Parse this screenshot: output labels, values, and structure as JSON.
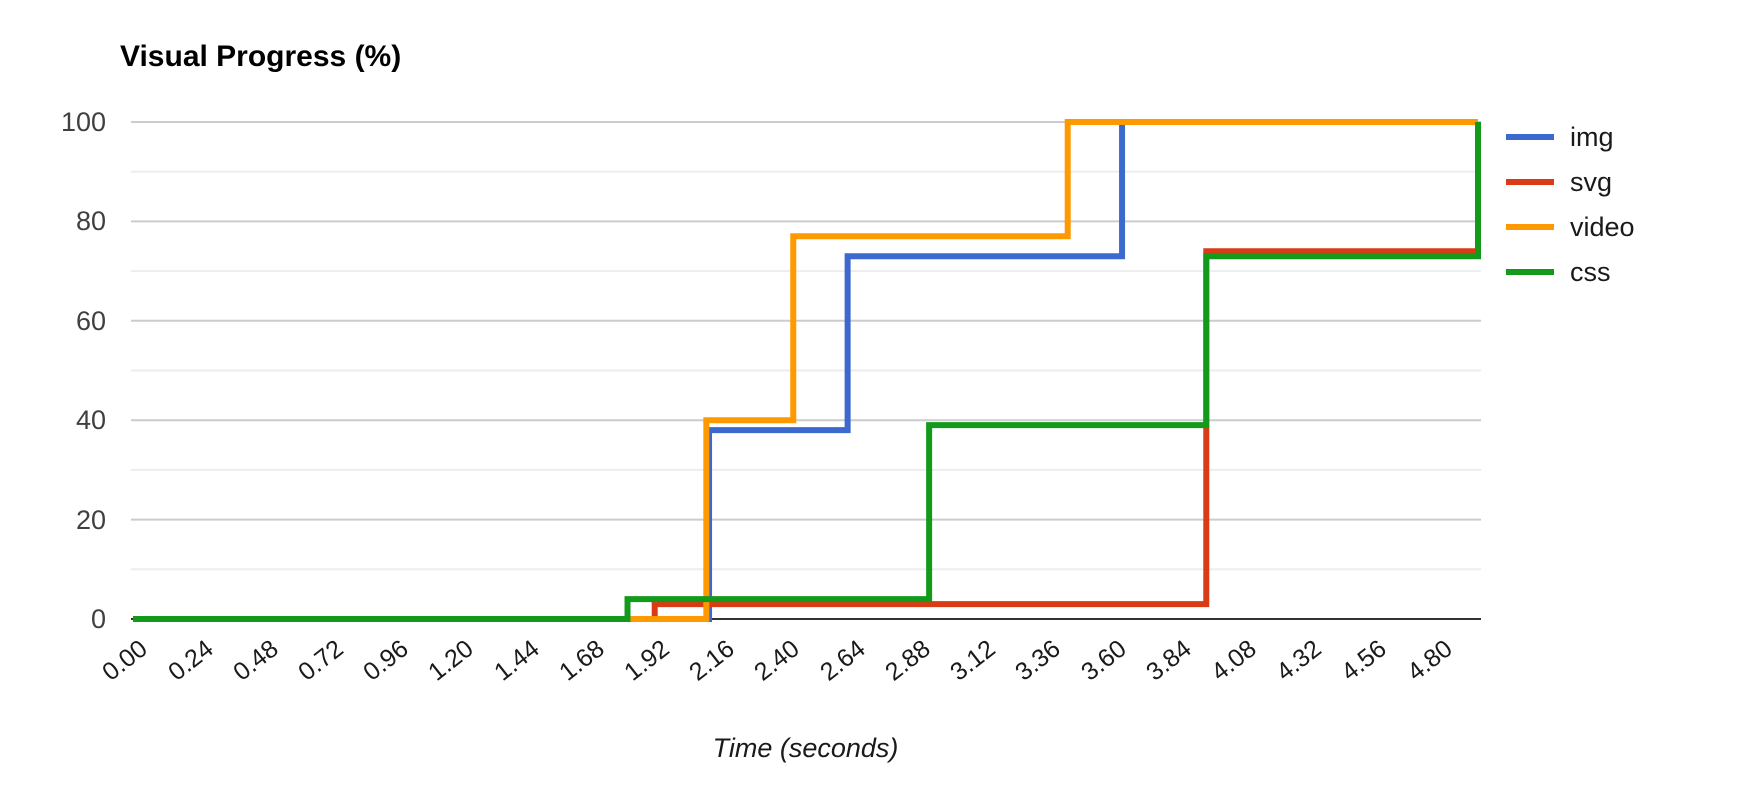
{
  "page": {
    "background": "#ffffff"
  },
  "chart_data": {
    "type": "line",
    "step_mode": "step-after",
    "title": "Visual Progress (%)",
    "xlabel": "Time (seconds)",
    "ylabel": "Visual Progress (%)",
    "xlim": [
      0,
      4.95
    ],
    "ylim": [
      0,
      100
    ],
    "grid": "horizontal only; major every 20, minor every 10",
    "legend_position": "right",
    "x_ticks": [
      "0.00",
      "0.24",
      "0.48",
      "0.72",
      "0.96",
      "1.20",
      "1.44",
      "1.68",
      "1.92",
      "2.16",
      "2.40",
      "2.64",
      "2.88",
      "3.12",
      "3.36",
      "3.60",
      "3.84",
      "4.08",
      "4.32",
      "4.56",
      "4.80"
    ],
    "x_tick_values": [
      0,
      0.24,
      0.48,
      0.72,
      0.96,
      1.2,
      1.44,
      1.68,
      1.92,
      2.16,
      2.4,
      2.64,
      2.88,
      3.12,
      3.36,
      3.6,
      3.84,
      4.08,
      4.32,
      4.56,
      4.8
    ],
    "y_ticks": [
      0,
      20,
      40,
      60,
      80,
      100
    ],
    "y_minor_ticks": [
      10,
      30,
      50,
      70,
      90
    ],
    "end_time": 4.95,
    "series": [
      {
        "name": "img",
        "color": "#3C69CD",
        "points": [
          [
            0,
            0
          ],
          [
            2.12,
            38
          ],
          [
            2.63,
            73
          ],
          [
            3.64,
            100
          ]
        ]
      },
      {
        "name": "svg",
        "color": "#D93B16",
        "points": [
          [
            0,
            0
          ],
          [
            1.92,
            3
          ],
          [
            3.95,
            74
          ]
        ]
      },
      {
        "name": "video",
        "color": "#FF9900",
        "points": [
          [
            0,
            0
          ],
          [
            2.11,
            40
          ],
          [
            2.43,
            77
          ],
          [
            3.44,
            100
          ]
        ]
      },
      {
        "name": "css",
        "color": "#149A1B",
        "points": [
          [
            0,
            0
          ],
          [
            1.82,
            4
          ],
          [
            2.93,
            39
          ],
          [
            3.95,
            73
          ],
          [
            4.95,
            100
          ]
        ]
      }
    ]
  },
  "style_colors": {
    "grid_major": "#cccccc",
    "grid_minor": "#ededed",
    "baseline": "#333333",
    "title_text": "#000000",
    "axis_label_text": "#404040",
    "tick_label_text": "#1a1a1a"
  }
}
